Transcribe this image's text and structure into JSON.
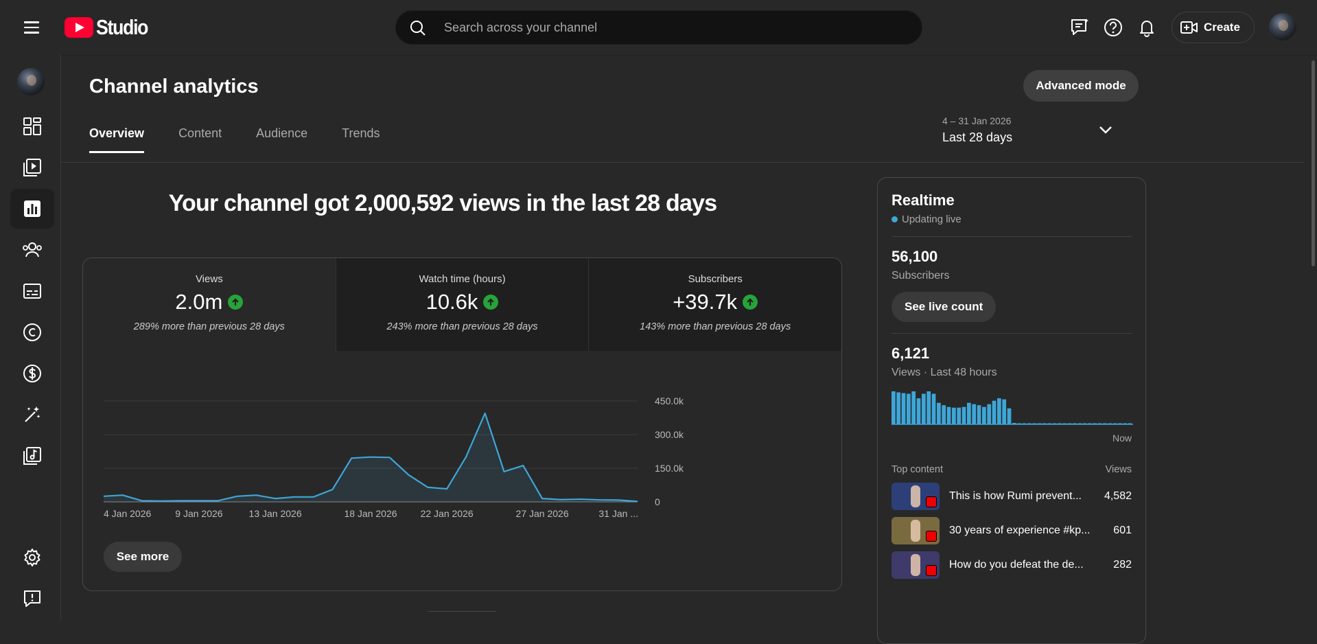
{
  "app": {
    "logo_text": "Studio"
  },
  "search": {
    "placeholder": "Search across your channel"
  },
  "header": {
    "create_label": "Create"
  },
  "page": {
    "title": "Channel analytics",
    "advanced_mode_label": "Advanced mode",
    "tabs": [
      {
        "label": "Overview",
        "active": true
      },
      {
        "label": "Content"
      },
      {
        "label": "Audience"
      },
      {
        "label": "Trends"
      }
    ],
    "date_range": {
      "dates": "4 – 31 Jan 2026",
      "label": "Last 28 days"
    },
    "headline": "Your channel got 2,000,592 views in the last 28 days"
  },
  "metrics": [
    {
      "label": "Views",
      "value": "2.0m",
      "comparison": "289% more than previous 28 days"
    },
    {
      "label": "Watch time (hours)",
      "value": "10.6k",
      "comparison": "243% more than previous 28 days"
    },
    {
      "label": "Subscribers",
      "value": "+39.7k",
      "comparison": "143% more than previous 28 days"
    }
  ],
  "see_more_label": "See more",
  "chart_data": {
    "type": "area",
    "x_tick_labels": [
      "4 Jan 2026",
      "9 Jan 2026",
      "13 Jan 2026",
      "18 Jan 2026",
      "22 Jan 2026",
      "27 Jan 2026",
      "31 Jan ..."
    ],
    "y_tick_labels": [
      "450.0k",
      "300.0k",
      "150.0k",
      "0"
    ],
    "ylim": [
      0,
      450000
    ],
    "series": [
      {
        "values": [
          25000,
          30000,
          5000,
          4000,
          5000,
          5000,
          5000,
          25000,
          30000,
          15000,
          22000,
          22000,
          55000,
          195000,
          200000,
          198000,
          120000,
          65000,
          58000,
          200000,
          395000,
          135000,
          162000,
          15000,
          10000,
          12000,
          9000,
          8000,
          2000
        ]
      }
    ],
    "color": "#3ea6d8"
  },
  "realtime": {
    "title": "Realtime",
    "status": "Updating live",
    "subscribers_value": "56,100",
    "subscribers_label": "Subscribers",
    "live_count_label": "See live count",
    "views_value": "6,121",
    "views_label": "Views · Last 48 hours",
    "now_label": "Now",
    "hourly_bars": [
      95,
      92,
      90,
      88,
      95,
      75,
      88,
      95,
      88,
      62,
      55,
      50,
      48,
      48,
      50,
      62,
      58,
      55,
      50,
      58,
      68,
      75,
      72,
      46,
      4,
      3,
      2,
      2,
      2,
      2,
      2,
      2,
      2,
      2,
      2,
      2,
      2,
      2,
      2,
      2,
      2,
      2,
      2,
      2,
      2,
      2,
      2,
      2
    ],
    "top_content_label": "Top content",
    "views_col_label": "Views",
    "top_content": [
      {
        "title": "This is how Rumi prevent...",
        "views": "4,582",
        "thumb_color": "#2c3f78"
      },
      {
        "title": "30 years of experience #kp...",
        "views": "601",
        "thumb_color": "#7a6a40"
      },
      {
        "title": "How do you defeat the de...",
        "views": "282",
        "thumb_color": "#3e3a6a"
      }
    ]
  }
}
